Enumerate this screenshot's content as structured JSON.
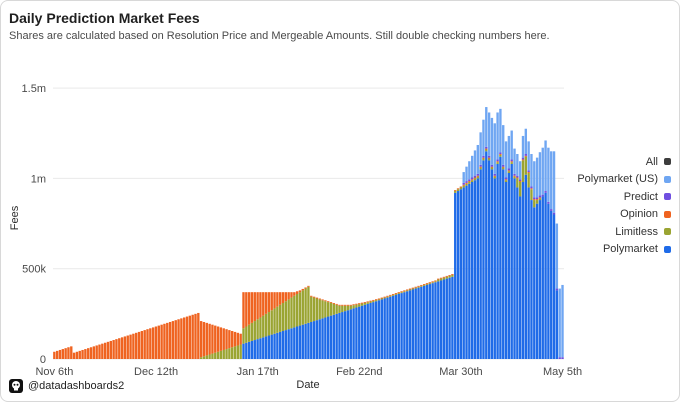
{
  "header": {
    "title": "Daily Prediction Market Fees",
    "subtitle": "Shares are calculated based on Resolution Price and Mergeable Amounts. Still double checking numbers here."
  },
  "footer": {
    "handle": "@datadashboards2"
  },
  "legend": [
    {
      "name": "All",
      "color": "#3d3d3d"
    },
    {
      "name": "Polymarket (US)",
      "color": "#6fa6f2"
    },
    {
      "name": "Predict",
      "color": "#6f4fe0"
    },
    {
      "name": "Opinion",
      "color": "#ef6320"
    },
    {
      "name": "Limitless",
      "color": "#9aa432"
    },
    {
      "name": "Polymarket",
      "color": "#1f6be8"
    }
  ],
  "chart_data": {
    "type": "bar",
    "stacked": true,
    "xlabel": "Date",
    "ylabel": "Fees",
    "ylim": [
      0,
      1650000
    ],
    "yticks": [
      0,
      500000,
      1000000,
      1500000
    ],
    "ytick_labels": [
      "0",
      "500k",
      "1m",
      "1.5m"
    ],
    "x_tick_labels": [
      "Nov 6th",
      "Dec 12th",
      "Jan 17th",
      "Feb 22nd",
      "Mar 30th",
      "May 5th"
    ],
    "x_tick_day_offsets": [
      0,
      36,
      72,
      108,
      144,
      180
    ],
    "start_date": "Nov 6th",
    "days": 181,
    "series_order": [
      "Polymarket",
      "Limitless",
      "Opinion",
      "Predict",
      "Polymarket (US)",
      "All"
    ],
    "series": [
      {
        "name": "Polymarket",
        "values": [
          0,
          0,
          0,
          0,
          0,
          0,
          0,
          0,
          0,
          0,
          0,
          0,
          0,
          0,
          0,
          0,
          0,
          0,
          0,
          0,
          0,
          0,
          0,
          0,
          0,
          0,
          0,
          0,
          0,
          0,
          0,
          0,
          0,
          0,
          0,
          0,
          0,
          0,
          0,
          0,
          0,
          0,
          0,
          0,
          0,
          0,
          0,
          0,
          0,
          0,
          0,
          0,
          0,
          0,
          0,
          0,
          0,
          0,
          0,
          0,
          0,
          0,
          0,
          0,
          0,
          0,
          0,
          85000,
          90000,
          95000,
          100000,
          105000,
          110000,
          115000,
          120000,
          125000,
          130000,
          135000,
          140000,
          145000,
          150000,
          155000,
          160000,
          165000,
          170000,
          175000,
          180000,
          185000,
          190000,
          195000,
          200000,
          205000,
          210000,
          215000,
          220000,
          225000,
          230000,
          235000,
          240000,
          245000,
          250000,
          255000,
          260000,
          265000,
          270000,
          275000,
          280000,
          285000,
          290000,
          295000,
          300000,
          305000,
          310000,
          315000,
          320000,
          325000,
          330000,
          335000,
          340000,
          345000,
          350000,
          355000,
          360000,
          365000,
          370000,
          375000,
          380000,
          385000,
          390000,
          395000,
          400000,
          405000,
          410000,
          415000,
          420000,
          425000,
          430000,
          435000,
          440000,
          445000,
          450000,
          455000,
          920000,
          930000,
          940000,
          950000,
          960000,
          970000,
          980000,
          990000,
          1000000,
          1050000,
          1100000,
          1150000,
          1100000,
          1050000,
          1000000,
          1080000,
          1120000,
          1050000,
          980000,
          1030000,
          1080000,
          1000000,
          950000,
          900000,
          980000,
          1020000,
          950000,
          880000,
          840000,
          860000,
          880000,
          900000,
          920000,
          860000,
          820000,
          800000,
          380000
        ]
      },
      {
        "name": "Limitless",
        "values": [
          0,
          0,
          0,
          0,
          0,
          0,
          0,
          0,
          0,
          0,
          0,
          0,
          0,
          0,
          0,
          0,
          0,
          0,
          0,
          0,
          0,
          0,
          0,
          0,
          0,
          0,
          0,
          0,
          0,
          0,
          0,
          0,
          0,
          0,
          0,
          0,
          0,
          0,
          0,
          0,
          0,
          0,
          0,
          0,
          0,
          0,
          0,
          0,
          0,
          0,
          0,
          0,
          10000,
          15000,
          20000,
          25000,
          30000,
          35000,
          40000,
          45000,
          50000,
          55000,
          60000,
          65000,
          70000,
          75000,
          80000,
          85000,
          90000,
          95000,
          100000,
          105000,
          110000,
          115000,
          120000,
          125000,
          130000,
          135000,
          140000,
          145000,
          150000,
          155000,
          160000,
          165000,
          170000,
          175000,
          180000,
          185000,
          190000,
          195000,
          200000,
          140000,
          130000,
          120000,
          110000,
          100000,
          90000,
          80000,
          70000,
          60000,
          50000,
          40000,
          35000,
          30000,
          25000,
          20000,
          18000,
          16000,
          14000,
          12000,
          10000,
          9000,
          8000,
          7000,
          6000,
          5000,
          5000,
          5000,
          5000,
          5000,
          5000,
          5000,
          5000,
          5000,
          5000,
          5000,
          5000,
          5000,
          5000,
          5000,
          5000,
          5000,
          5000,
          5000,
          5000,
          5000,
          10000,
          10000,
          10000,
          10000,
          10000,
          10000,
          10000,
          10000,
          10000,
          10000,
          10000,
          10000,
          10000,
          10000,
          10000,
          10000,
          10000,
          10000,
          10000,
          10000,
          10000,
          10000,
          10000,
          10000,
          10000,
          10000,
          10000,
          10000,
          50000,
          80000,
          120000,
          100000,
          80000,
          60000,
          40000,
          20000,
          10000,
          0
        ]
      },
      {
        "name": "Opinion",
        "values": [
          40000,
          45000,
          50000,
          55000,
          60000,
          65000,
          70000,
          35000,
          40000,
          45000,
          50000,
          55000,
          60000,
          65000,
          70000,
          75000,
          80000,
          85000,
          90000,
          95000,
          100000,
          105000,
          110000,
          115000,
          120000,
          125000,
          130000,
          135000,
          140000,
          145000,
          150000,
          155000,
          160000,
          165000,
          170000,
          175000,
          180000,
          185000,
          190000,
          195000,
          200000,
          205000,
          210000,
          215000,
          220000,
          225000,
          230000,
          235000,
          240000,
          245000,
          250000,
          255000,
          200000,
          190000,
          180000,
          170000,
          160000,
          150000,
          140000,
          130000,
          120000,
          110000,
          100000,
          90000,
          80000,
          70000,
          60000,
          200000,
          190000,
          180000,
          170000,
          160000,
          150000,
          140000,
          130000,
          120000,
          110000,
          100000,
          90000,
          80000,
          70000,
          60000,
          50000,
          40000,
          30000,
          20000,
          15000,
          10000,
          8000,
          6000,
          5000,
          5000,
          5000,
          5000,
          5000,
          5000,
          5000,
          5000,
          5000,
          5000,
          5000,
          5000,
          5000,
          5000,
          5000,
          5000,
          5000,
          5000,
          5000,
          5000,
          5000,
          5000,
          5000,
          5000,
          5000,
          5000,
          5000,
          5000,
          5000,
          5000,
          5000,
          5000,
          5000,
          5000,
          5000,
          5000,
          5000,
          5000,
          5000,
          5000,
          5000,
          5000,
          5000,
          5000,
          5000,
          5000,
          5000,
          5000,
          5000,
          5000,
          5000,
          5000,
          5000,
          5000,
          5000,
          5000,
          5000,
          5000,
          5000,
          5000,
          5000,
          5000,
          5000,
          5000,
          5000,
          5000,
          5000,
          5000,
          5000,
          5000,
          5000,
          5000,
          5000,
          5000,
          5000,
          5000,
          5000,
          5000,
          5000,
          5000,
          5000,
          5000,
          5000,
          0
        ]
      },
      {
        "name": "Predict",
        "values": [
          0,
          0,
          0,
          0,
          0,
          0,
          0,
          0,
          0,
          0,
          0,
          0,
          0,
          0,
          0,
          0,
          0,
          0,
          0,
          0,
          0,
          0,
          0,
          0,
          0,
          0,
          0,
          0,
          0,
          0,
          0,
          0,
          0,
          0,
          0,
          0,
          0,
          0,
          0,
          0,
          0,
          0,
          0,
          0,
          0,
          0,
          0,
          0,
          0,
          0,
          0,
          0,
          0,
          0,
          0,
          0,
          0,
          0,
          0,
          0,
          0,
          0,
          0,
          0,
          0,
          0,
          0,
          0,
          0,
          0,
          0,
          0,
          0,
          0,
          0,
          0,
          0,
          0,
          0,
          0,
          0,
          0,
          0,
          0,
          0,
          0,
          0,
          0,
          0,
          0,
          0,
          0,
          0,
          0,
          0,
          0,
          0,
          0,
          0,
          0,
          0,
          0,
          0,
          0,
          0,
          0,
          0,
          0,
          0,
          0,
          0,
          0,
          0,
          0,
          0,
          0,
          0,
          0,
          0,
          0,
          0,
          0,
          0,
          0,
          0,
          0,
          0,
          0,
          0,
          0,
          0,
          0,
          0,
          0,
          0,
          0,
          0,
          0,
          0,
          0,
          0,
          0,
          0,
          0,
          0,
          10000,
          10000,
          10000,
          10000,
          10000,
          10000,
          10000,
          10000,
          10000,
          10000,
          10000,
          10000,
          10000,
          10000,
          10000,
          10000,
          10000,
          10000,
          10000,
          10000,
          10000,
          10000,
          10000,
          10000,
          10000,
          10000,
          10000,
          10000,
          10000,
          10000,
          10000,
          10000,
          10000,
          10000,
          10000,
          10000,
          0
        ]
      },
      {
        "name": "Polymarket (US)",
        "values": [
          0,
          0,
          0,
          0,
          0,
          0,
          0,
          0,
          0,
          0,
          0,
          0,
          0,
          0,
          0,
          0,
          0,
          0,
          0,
          0,
          0,
          0,
          0,
          0,
          0,
          0,
          0,
          0,
          0,
          0,
          0,
          0,
          0,
          0,
          0,
          0,
          0,
          0,
          0,
          0,
          0,
          0,
          0,
          0,
          0,
          0,
          0,
          0,
          0,
          0,
          0,
          0,
          0,
          0,
          0,
          0,
          0,
          0,
          0,
          0,
          0,
          0,
          0,
          0,
          0,
          0,
          0,
          0,
          0,
          0,
          0,
          0,
          0,
          0,
          0,
          0,
          0,
          0,
          0,
          0,
          0,
          0,
          0,
          0,
          0,
          0,
          0,
          0,
          0,
          0,
          0,
          0,
          0,
          0,
          0,
          0,
          0,
          0,
          0,
          0,
          0,
          0,
          0,
          0,
          0,
          0,
          0,
          0,
          0,
          0,
          0,
          0,
          0,
          0,
          0,
          0,
          0,
          0,
          0,
          0,
          0,
          0,
          0,
          0,
          0,
          0,
          0,
          0,
          0,
          0,
          0,
          0,
          0,
          0,
          0,
          0,
          0,
          0,
          0,
          0,
          0,
          0,
          0,
          0,
          0,
          60000,
          80000,
          100000,
          120000,
          140000,
          160000,
          180000,
          200000,
          220000,
          240000,
          260000,
          280000,
          260000,
          240000,
          220000,
          200000,
          180000,
          160000,
          140000,
          120000,
          100000,
          120000,
          140000,
          160000,
          180000,
          200000,
          220000,
          240000,
          260000,
          280000,
          300000,
          320000,
          340000,
          360000,
          380000,
          400000,
          0
        ]
      }
    ]
  }
}
